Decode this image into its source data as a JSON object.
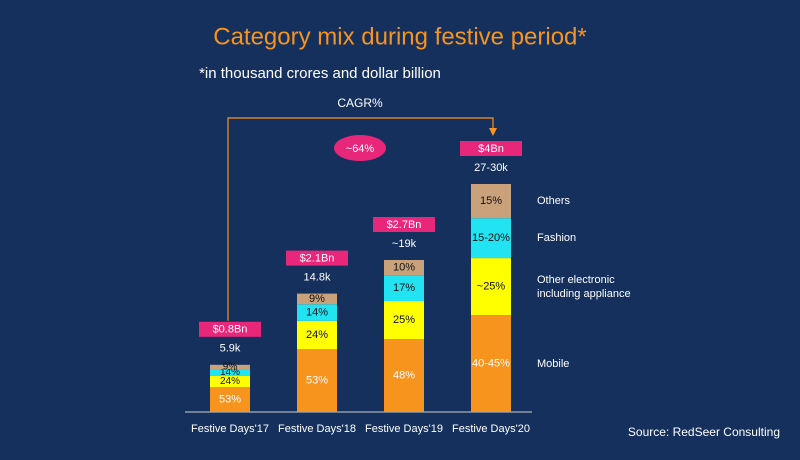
{
  "chart_data": {
    "type": "bar",
    "title": "Category mix during festive period*",
    "subtitle": "*in thousand crores and dollar billion",
    "annotation": "CAGR%",
    "cagr_label": "~64%",
    "source": "Source: RedSeer Consulting",
    "categories": [
      "Festive Days'17",
      "Festive Days'18",
      "Festive Days'19",
      "Festive Days'20"
    ],
    "totals": [
      5.9,
      14.8,
      19,
      28.5
    ],
    "total_labels": [
      "5.9k",
      "14.8k",
      "~19k",
      "27-30k"
    ],
    "dollar_values": [
      0.8,
      2.1,
      2.7,
      4
    ],
    "dollar_labels": [
      "$0.8Bn",
      "$2.1Bn",
      "$2.7Bn",
      "$4Bn"
    ],
    "series": [
      {
        "name": "Mobile",
        "color": "#f7941d",
        "values": [
          53,
          53,
          48,
          42.5
        ],
        "value_labels": [
          "53%",
          "53%",
          "48%",
          "40-45%"
        ]
      },
      {
        "name": "Other electronic including appliance",
        "color": "#ffff00",
        "values": [
          24,
          24,
          25,
          25
        ],
        "value_labels": [
          "24%",
          "24%",
          "25%",
          "~25%"
        ]
      },
      {
        "name": "Fashion",
        "color": "#22e3f2",
        "values": [
          14,
          14,
          17,
          17.5
        ],
        "value_labels": [
          "14%",
          "14%",
          "17%",
          "15-20%"
        ]
      },
      {
        "name": "Others",
        "color": "#c9a27c",
        "values": [
          9,
          9,
          10,
          15
        ],
        "value_labels": [
          "9%",
          "9%",
          "10%",
          "15%"
        ]
      }
    ]
  }
}
